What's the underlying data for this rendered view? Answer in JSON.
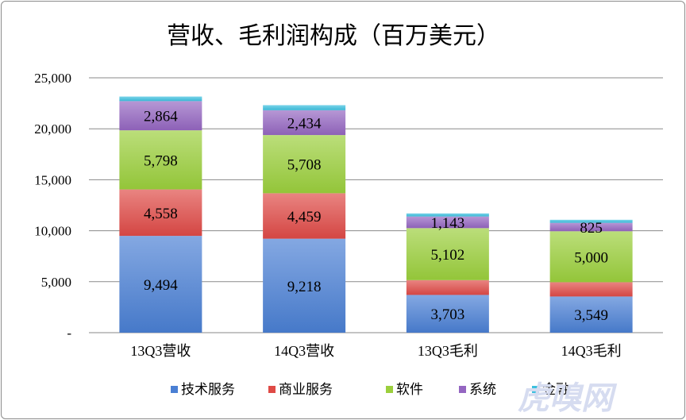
{
  "chart_data": {
    "type": "bar",
    "stacked": true,
    "title": "营收、毛利润构成（百万美元）",
    "categories": [
      "13Q3营收",
      "14Q3营收",
      "13Q3毛利",
      "14Q3毛利"
    ],
    "series": [
      {
        "name": "技术服务",
        "color": "#4a7fd4",
        "values": [
          9494,
          9218,
          3703,
          3549
        ],
        "labels": [
          "9,494",
          "9,218",
          "3,703",
          "3,549"
        ]
      },
      {
        "name": "商业服务",
        "color": "#df4a46",
        "values": [
          4558,
          4459,
          1450,
          1400
        ],
        "labels": [
          "4,558",
          "4,459",
          "",
          ""
        ]
      },
      {
        "name": "软件",
        "color": "#9bcf3c",
        "values": [
          5798,
          5708,
          5102,
          5000
        ],
        "labels": [
          "5,798",
          "5,708",
          "5,102",
          "5,000"
        ]
      },
      {
        "name": "系统",
        "color": "#9466c1",
        "values": [
          2864,
          2434,
          1143,
          825
        ],
        "labels": [
          "2,864",
          "2,434",
          "1,143",
          "825"
        ]
      },
      {
        "name": "金融",
        "color": "#3cc0df",
        "values": [
          450,
          500,
          300,
          300
        ],
        "labels": [
          "",
          "",
          "",
          ""
        ]
      }
    ],
    "ylim": [
      0,
      25000
    ],
    "yticks": [
      0,
      5000,
      10000,
      15000,
      20000,
      25000
    ],
    "ytick_labels": [
      "-",
      "5,000",
      "10,000",
      "15,000",
      "20,000",
      "25,000"
    ],
    "grid": true,
    "legend_position": "bottom"
  },
  "watermark": "虎嗅网"
}
